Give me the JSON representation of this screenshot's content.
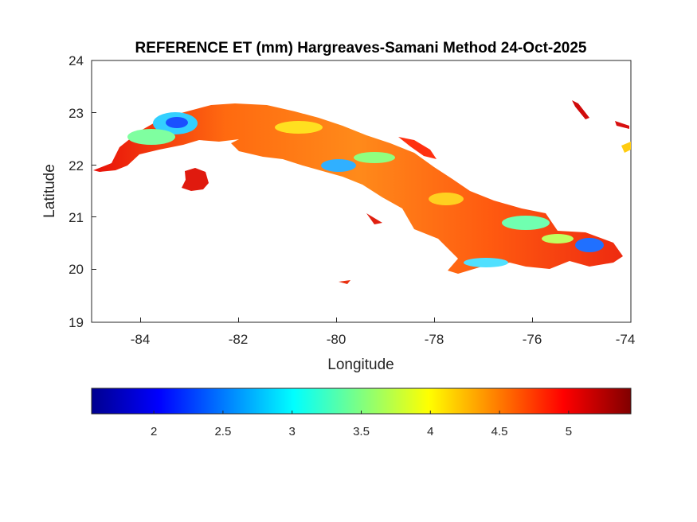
{
  "title": "REFERENCE ET (mm) Hargreaves-Samani Method  24-Oct-2025",
  "map": {
    "xlabel": "Longitude",
    "ylabel": "Latitude",
    "xlim": [
      -85,
      -74
    ],
    "ylim": [
      19,
      24
    ],
    "xticks": [
      "-84",
      "-82",
      "-80",
      "-78",
      "-76",
      "-74"
    ],
    "yticks": [
      "19",
      "20",
      "21",
      "22",
      "23",
      "24"
    ],
    "region": "Cuba",
    "colormap": "jet"
  },
  "colorbar": {
    "range": [
      1.55,
      5.45
    ],
    "ticks": [
      "2",
      "2.5",
      "3",
      "3.5",
      "4",
      "4.5",
      "5"
    ],
    "colors": [
      "#00008f",
      "#0000ff",
      "#0080ff",
      "#00ffff",
      "#80ff80",
      "#ffff00",
      "#ff8000",
      "#ff0000",
      "#800000"
    ]
  }
}
